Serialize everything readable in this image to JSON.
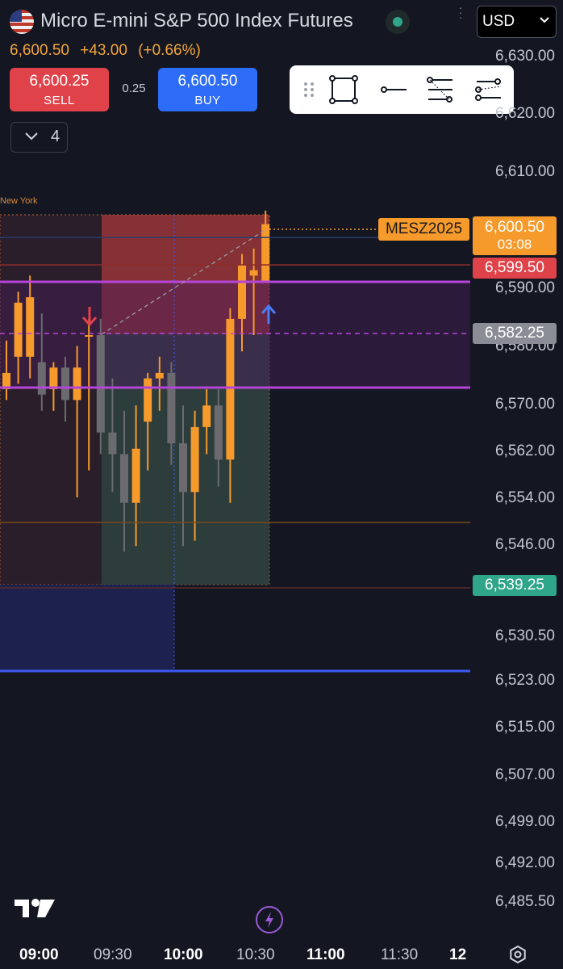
{
  "header": {
    "title": "Micro E-mini S&P 500 Index Futures",
    "flag_icon": "us-flag-icon",
    "live_icon": "market-open-dot-icon",
    "more_icon": "vertical-dots-icon",
    "currency": "USD"
  },
  "quote": {
    "price": "6,600.50",
    "change": "+43.00",
    "change_pct": "(+0.66%)"
  },
  "trade": {
    "sell_price": "6,600.25",
    "sell_label": "SELL",
    "spread": "0.25",
    "buy_price": "6,600.50",
    "buy_label": "BUY"
  },
  "toolbar": {
    "tools": [
      "drag-handle-icon",
      "rectangle-tool-icon",
      "horizontal-line-tool-icon",
      "fib-retracement-tool-icon",
      "parallel-channel-tool-icon"
    ]
  },
  "lots": {
    "value": "4"
  },
  "session_label": "New York",
  "symbol_tag": "MESZ2025",
  "price_tags": {
    "last": "6,600.50",
    "countdown": "03:08",
    "bid_line": "6,599.50",
    "mid_line": "6,582.25",
    "low_line": "6,539.25"
  },
  "price_axis": [
    "6,630.00",
    "6,620.00",
    "6,610.00",
    "6,590.00",
    "6,580.00",
    "6,570.00",
    "6,562.00",
    "6,554.00",
    "6,546.00",
    "6,530.50",
    "6,523.00",
    "6,515.00",
    "6,507.00",
    "6,499.00",
    "6,492.00",
    "6,485.50"
  ],
  "time_axis": [
    {
      "label": "09:00",
      "bold": true
    },
    {
      "label": "09:30",
      "bold": false
    },
    {
      "label": "10:00",
      "bold": true
    },
    {
      "label": "10:30",
      "bold": false
    },
    {
      "label": "11:00",
      "bold": true
    },
    {
      "label": "11:30",
      "bold": false
    },
    {
      "label": "12",
      "bold": true
    }
  ],
  "colors": {
    "background": "#141722",
    "bull": "#f79a2c",
    "bear": "#6b6b6f",
    "sell": "#e0424a",
    "buy": "#2d6cf6",
    "purple_line": "#b545d9",
    "blue_line": "#3d5af1",
    "teal": "#2fa58a"
  },
  "chart_data": {
    "type": "candlestick",
    "candles": [
      {
        "o": 6570,
        "h": 6579,
        "l": 6568,
        "c": 6573
      },
      {
        "o": 6576,
        "h": 6588,
        "l": 6571,
        "c": 6586
      },
      {
        "o": 6576,
        "h": 6591,
        "l": 6572,
        "c": 6587
      },
      {
        "o": 6575,
        "h": 6584,
        "l": 6566,
        "c": 6569
      },
      {
        "o": 6570,
        "h": 6575,
        "l": 6566,
        "c": 6574
      },
      {
        "o": 6574,
        "h": 6576,
        "l": 6564,
        "c": 6568
      },
      {
        "o": 6568,
        "h": 6578,
        "l": 6550,
        "c": 6574
      },
      {
        "o": 6580,
        "h": 6583,
        "l": 6555,
        "c": 6580
      },
      {
        "o": 6580,
        "h": 6583,
        "l": 6558,
        "c": 6562
      },
      {
        "o": 6562,
        "h": 6572,
        "l": 6551,
        "c": 6558
      },
      {
        "o": 6558,
        "h": 6566,
        "l": 6540,
        "c": 6549
      },
      {
        "o": 6549,
        "h": 6567,
        "l": 6541,
        "c": 6559
      },
      {
        "o": 6564,
        "h": 6573,
        "l": 6555,
        "c": 6572
      },
      {
        "o": 6572,
        "h": 6576,
        "l": 6566,
        "c": 6573
      },
      {
        "o": 6573,
        "h": 6575,
        "l": 6556,
        "c": 6560
      },
      {
        "o": 6560,
        "h": 6567,
        "l": 6541,
        "c": 6551
      },
      {
        "o": 6551,
        "h": 6566,
        "l": 6542,
        "c": 6563
      },
      {
        "o": 6563,
        "h": 6570,
        "l": 6558,
        "c": 6567
      },
      {
        "o": 6567,
        "h": 6570,
        "l": 6552,
        "c": 6557
      },
      {
        "o": 6557,
        "h": 6585,
        "l": 6549,
        "c": 6583
      },
      {
        "o": 6583,
        "h": 6595,
        "l": 6577,
        "c": 6593
      },
      {
        "o": 6591,
        "h": 6596,
        "l": 6580,
        "c": 6592
      },
      {
        "o": 6590,
        "h": 6603,
        "l": 6590,
        "c": 6600.5
      }
    ]
  }
}
